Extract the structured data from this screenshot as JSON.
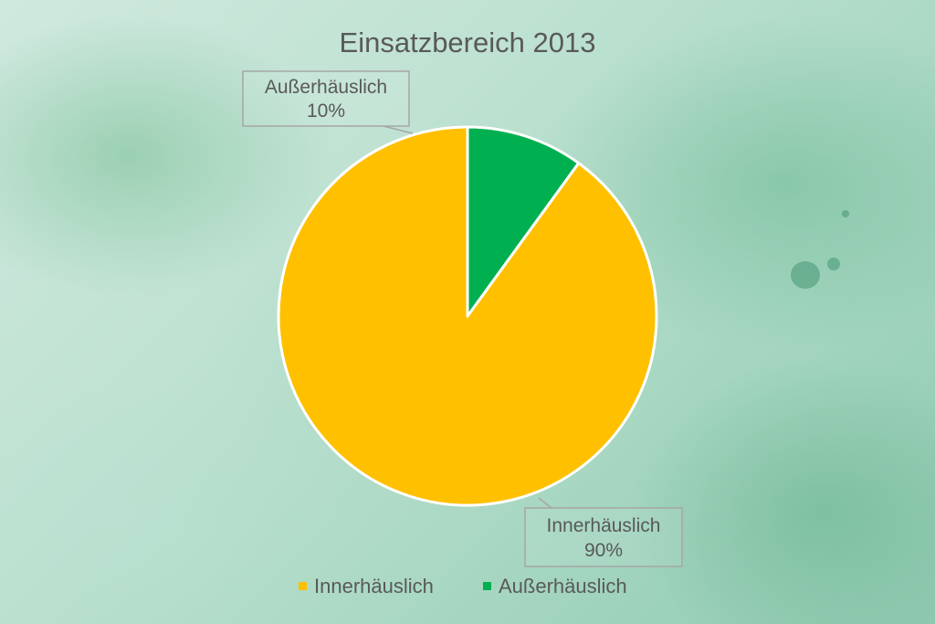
{
  "chart_data": {
    "type": "pie",
    "title": "Einsatzbereich 2013",
    "categories": [
      "Innerhäuslich",
      "Außerhäuslich"
    ],
    "values": [
      90,
      10
    ],
    "data_labels": [
      {
        "name": "Innerhäuslich",
        "value": "90%"
      },
      {
        "name": "Außerhäuslich",
        "value": "10%"
      }
    ],
    "colors": [
      "#FFC000",
      "#00B050"
    ],
    "legend": "bottom",
    "start_angle": "12 o'clock",
    "direction": "counterclockwise"
  }
}
